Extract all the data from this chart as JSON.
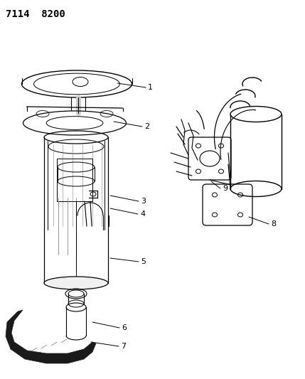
{
  "title": "7114  8200",
  "title_fontsize": 10,
  "title_fontweight": "bold",
  "background_color": "#ffffff",
  "figsize": [
    4.29,
    5.33
  ],
  "dpi": 100
}
